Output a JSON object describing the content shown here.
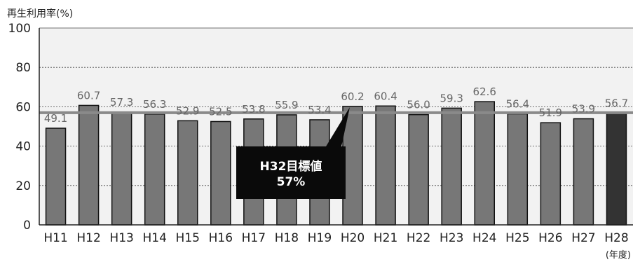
{
  "chart_data": {
    "type": "bar",
    "ylabel": "再生利用率(%)",
    "xunit": "(年度)",
    "ylim": [
      0,
      100
    ],
    "yticks": [
      0,
      20,
      40,
      60,
      80,
      100
    ],
    "grid": "horizontal-dashed",
    "categories": [
      "H11",
      "H12",
      "H13",
      "H14",
      "H15",
      "H16",
      "H17",
      "H18",
      "H19",
      "H20",
      "H21",
      "H22",
      "H23",
      "H24",
      "H25",
      "H26",
      "H27",
      "H28"
    ],
    "values": [
      49.1,
      60.7,
      57.3,
      56.3,
      52.9,
      52.5,
      53.8,
      55.9,
      53.4,
      60.2,
      60.4,
      56.0,
      59.3,
      62.6,
      56.4,
      51.9,
      53.9,
      56.7
    ],
    "value_labels": [
      "49.1",
      "60.7",
      "57.3",
      "56.3",
      "52.9",
      "52.5",
      "53.8",
      "55.9",
      "53.4",
      "60.2",
      "60.4",
      "56.0",
      "59.3",
      "62.6",
      "56.4",
      "51.9",
      "53.9",
      "56.7"
    ],
    "target": {
      "value": 57,
      "label_line1": "H32目標値",
      "label_line2": "57%"
    },
    "colors": {
      "bar": "#777777",
      "bar_last": "#333333",
      "target_line": "#8a8a8a",
      "plot_bg": "#f2f2f2",
      "callout_bg": "#0a0a0a"
    }
  }
}
